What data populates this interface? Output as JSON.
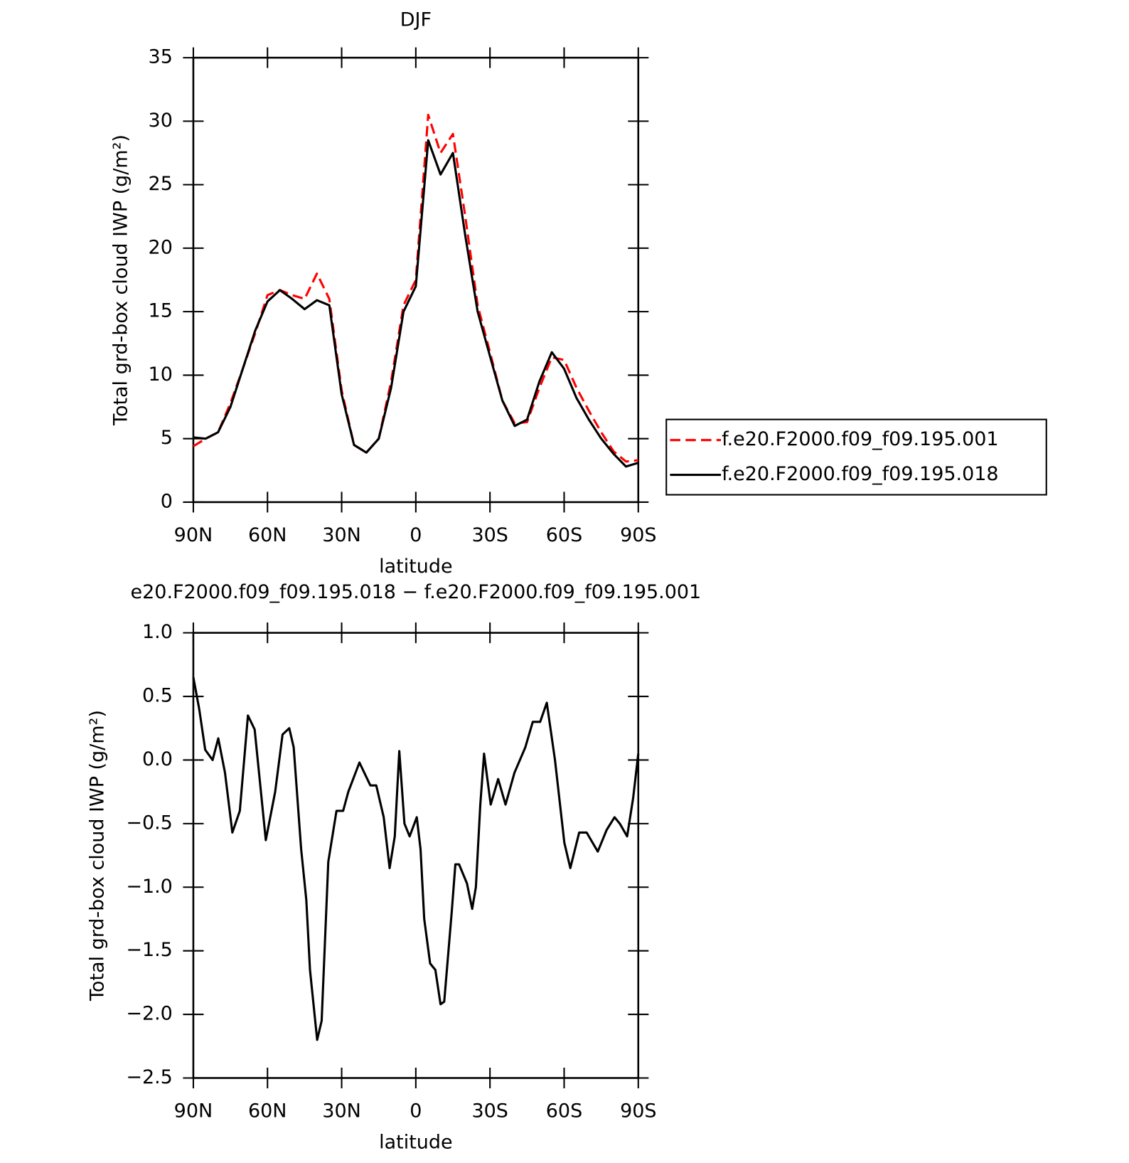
{
  "chart_data": [
    {
      "type": "line",
      "title": "DJF",
      "x_label": "latitude",
      "y_label": "Total grd-box cloud IWP (g/m²)",
      "x": [
        90,
        85,
        80,
        75,
        70,
        65,
        60,
        55,
        50,
        45,
        40,
        35,
        30,
        25,
        20,
        15,
        10,
        5,
        0,
        -5,
        -10,
        -15,
        -20,
        -25,
        -30,
        -35,
        -40,
        -45,
        -50,
        -55,
        -60,
        -65,
        -70,
        -75,
        -80,
        -85,
        -90
      ],
      "series": [
        {
          "name": "f.e20.F2000.f09_f09.195.001",
          "color": "#ff0000",
          "line_style": "dashed",
          "values": [
            4.4,
            5.0,
            5.5,
            7.8,
            10.5,
            13.3,
            16.3,
            16.7,
            16.3,
            16.0,
            18.0,
            16.0,
            8.8,
            4.5,
            3.9,
            5.0,
            9.5,
            15.5,
            17.5,
            30.5,
            27.5,
            29.0,
            22.5,
            15.5,
            11.8,
            8.0,
            6.2,
            6.3,
            9.0,
            11.4,
            11.2,
            9.0,
            7.2,
            5.5,
            4.0,
            3.2,
            3.3
          ]
        },
        {
          "name": "f.e20.F2000.f09_f09.195.018",
          "color": "#000000",
          "line_style": "solid",
          "values": [
            5.1,
            5.0,
            5.5,
            7.5,
            10.5,
            13.5,
            15.8,
            16.7,
            16.0,
            15.2,
            15.9,
            15.5,
            8.5,
            4.5,
            3.9,
            5.0,
            9.0,
            15.0,
            17.0,
            28.5,
            25.8,
            27.5,
            21.0,
            15.0,
            11.5,
            8.0,
            6.0,
            6.5,
            9.5,
            11.8,
            10.5,
            8.2,
            6.5,
            5.0,
            3.8,
            2.8,
            3.1
          ]
        }
      ],
      "xlim": [
        90,
        -90
      ],
      "xticks": [
        {
          "value": 90,
          "label": "90N"
        },
        {
          "value": 60,
          "label": "60N"
        },
        {
          "value": 30,
          "label": "30N"
        },
        0,
        {
          "value": -30,
          "label": "30S"
        },
        {
          "value": -60,
          "label": "60S"
        },
        {
          "value": -90,
          "label": "90S"
        }
      ],
      "ylim": [
        0,
        35
      ],
      "yticks": [
        0,
        5,
        10,
        15,
        20,
        25,
        30,
        35
      ],
      "legend": "outside-right"
    },
    {
      "type": "line",
      "title": "e20.F2000.f09_f09.195.018 − f.e20.F2000.f09_f09.195.001",
      "x_label": "latitude",
      "y_label": "Total grd-box cloud IWP (g/m²)",
      "x": [
        90,
        87.6,
        85.2,
        82.2,
        79.9,
        77.2,
        74.2,
        71.2,
        67.9,
        65.2,
        60.7,
        56.9,
        53.9,
        51.2,
        49.4,
        46.4,
        44.3,
        42.8,
        39.9,
        38.1,
        35.4,
        32.1,
        29.4,
        27.3,
        22.8,
        18.4,
        16.0,
        13.0,
        10.6,
        8.5,
        6.7,
        4.6,
        2.5,
        -0.4,
        -1.9,
        -3.4,
        -5.8,
        -7.9,
        -10.0,
        -11.5,
        -14.5,
        -16.0,
        -17.5,
        -20.7,
        -22.8,
        -24.3,
        -26.1,
        -27.6,
        -30.3,
        -33.3,
        -36.3,
        -39.9,
        -44.3,
        -47.3,
        -50.3,
        -53.0,
        -56.3,
        -60.1,
        -62.5,
        -66.1,
        -69.1,
        -73.6,
        -77.2,
        -80.4,
        -82.5,
        -85.5,
        -87.9,
        -90
      ],
      "series": [
        {
          "color": "#000000",
          "line_style": "solid",
          "values": [
            0.65,
            0.4,
            0.08,
            0.0,
            0.17,
            -0.1,
            -0.57,
            -0.4,
            0.35,
            0.24,
            -0.63,
            -0.25,
            0.2,
            0.25,
            0.1,
            -0.7,
            -1.1,
            -1.65,
            -2.2,
            -2.05,
            -0.8,
            -0.4,
            -0.4,
            -0.25,
            -0.02,
            -0.2,
            -0.2,
            -0.45,
            -0.85,
            -0.6,
            0.07,
            -0.5,
            -0.6,
            -0.45,
            -0.7,
            -1.25,
            -1.6,
            -1.65,
            -1.92,
            -1.9,
            -1.2,
            -0.82,
            -0.82,
            -0.97,
            -1.17,
            -1.0,
            -0.35,
            0.05,
            -0.35,
            -0.15,
            -0.35,
            -0.1,
            0.1,
            0.3,
            0.3,
            0.45,
            0.0,
            -0.65,
            -0.85,
            -0.57,
            -0.57,
            -0.72,
            -0.55,
            -0.45,
            -0.5,
            -0.6,
            -0.3,
            0.05
          ]
        }
      ],
      "xlim": [
        90,
        -90
      ],
      "xticks": [
        {
          "value": 90,
          "label": "90N"
        },
        {
          "value": 60,
          "label": "60N"
        },
        {
          "value": 30,
          "label": "30N"
        },
        0,
        {
          "value": -30,
          "label": "30S"
        },
        {
          "value": -60,
          "label": "60S"
        },
        {
          "value": -90,
          "label": "90S"
        }
      ],
      "ylim": [
        -2.5,
        1.0
      ],
      "yticks": [
        {
          "value": -2.5,
          "label": "−2.5"
        },
        {
          "value": -2.0,
          "label": "−2.0"
        },
        {
          "value": -1.5,
          "label": "−1.5"
        },
        {
          "value": -1.0,
          "label": "−1.0"
        },
        {
          "value": -0.5,
          "label": "−0.5"
        },
        {
          "value": 0.0,
          "label": "0.0"
        },
        {
          "value": 0.5,
          "label": "0.5"
        },
        {
          "value": 1.0,
          "label": "1.0"
        }
      ]
    }
  ]
}
